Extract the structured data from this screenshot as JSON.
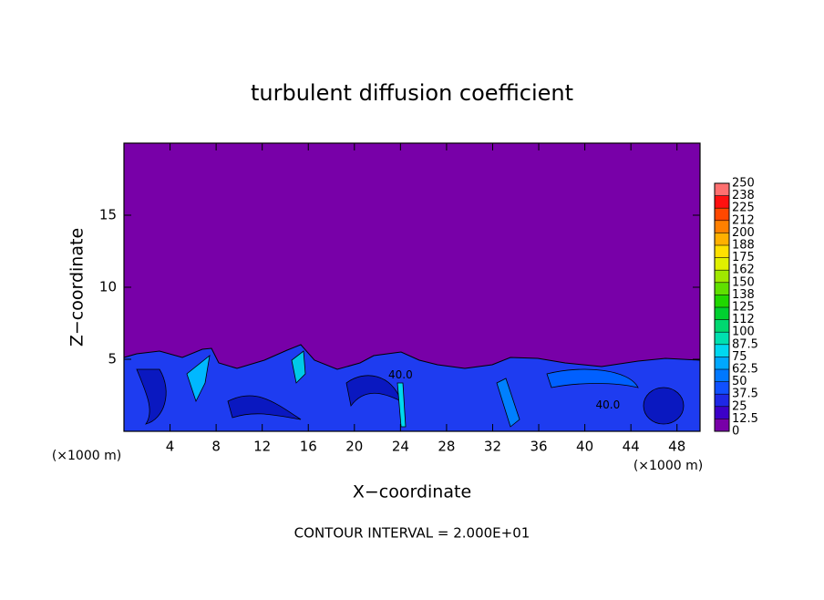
{
  "chart_data": {
    "type": "contour",
    "title": "turbulent diffusion coefficient",
    "xlabel": "X−coordinate",
    "ylabel": "Z−coordinate",
    "x_unit": "(×1000 m)",
    "footer": "CONTOUR INTERVAL = 2.000E+01",
    "annotations": [
      "40.0",
      "40.0"
    ],
    "xlim": [
      0,
      50
    ],
    "ylim": [
      0,
      20
    ],
    "xticks": [
      4,
      8,
      12,
      16,
      20,
      24,
      28,
      32,
      36,
      40,
      44,
      48
    ],
    "yticks": [
      5,
      10,
      15
    ],
    "background_color": "#7800a8",
    "colorbar": {
      "levels": [
        0,
        12.5,
        25,
        37.5,
        50,
        62.5,
        75,
        87.5,
        100,
        {
          "value": 112.5,
          "label": "112"
        },
        125,
        {
          "value": 137.5,
          "label": "138"
        },
        150,
        {
          "value": 162.5,
          "label": "162"
        },
        175,
        {
          "value": 187.5,
          "label": "188"
        },
        200,
        {
          "value": 212.5,
          "label": "212"
        },
        225,
        {
          "value": 237.5,
          "label": "238"
        },
        250
      ],
      "colors": [
        "#7800a8",
        "#3c00c8",
        "#1e28e6",
        "#1050ff",
        "#0078ff",
        "#00a8ff",
        "#00d8f0",
        "#00e0b0",
        "#00d870",
        "#00d030",
        "#20d800",
        "#60e000",
        "#a0e800",
        "#e0f000",
        "#ffe000",
        "#ffb000",
        "#ff8000",
        "#ff4800",
        "#ff1010",
        "#ff7070"
      ]
    }
  }
}
